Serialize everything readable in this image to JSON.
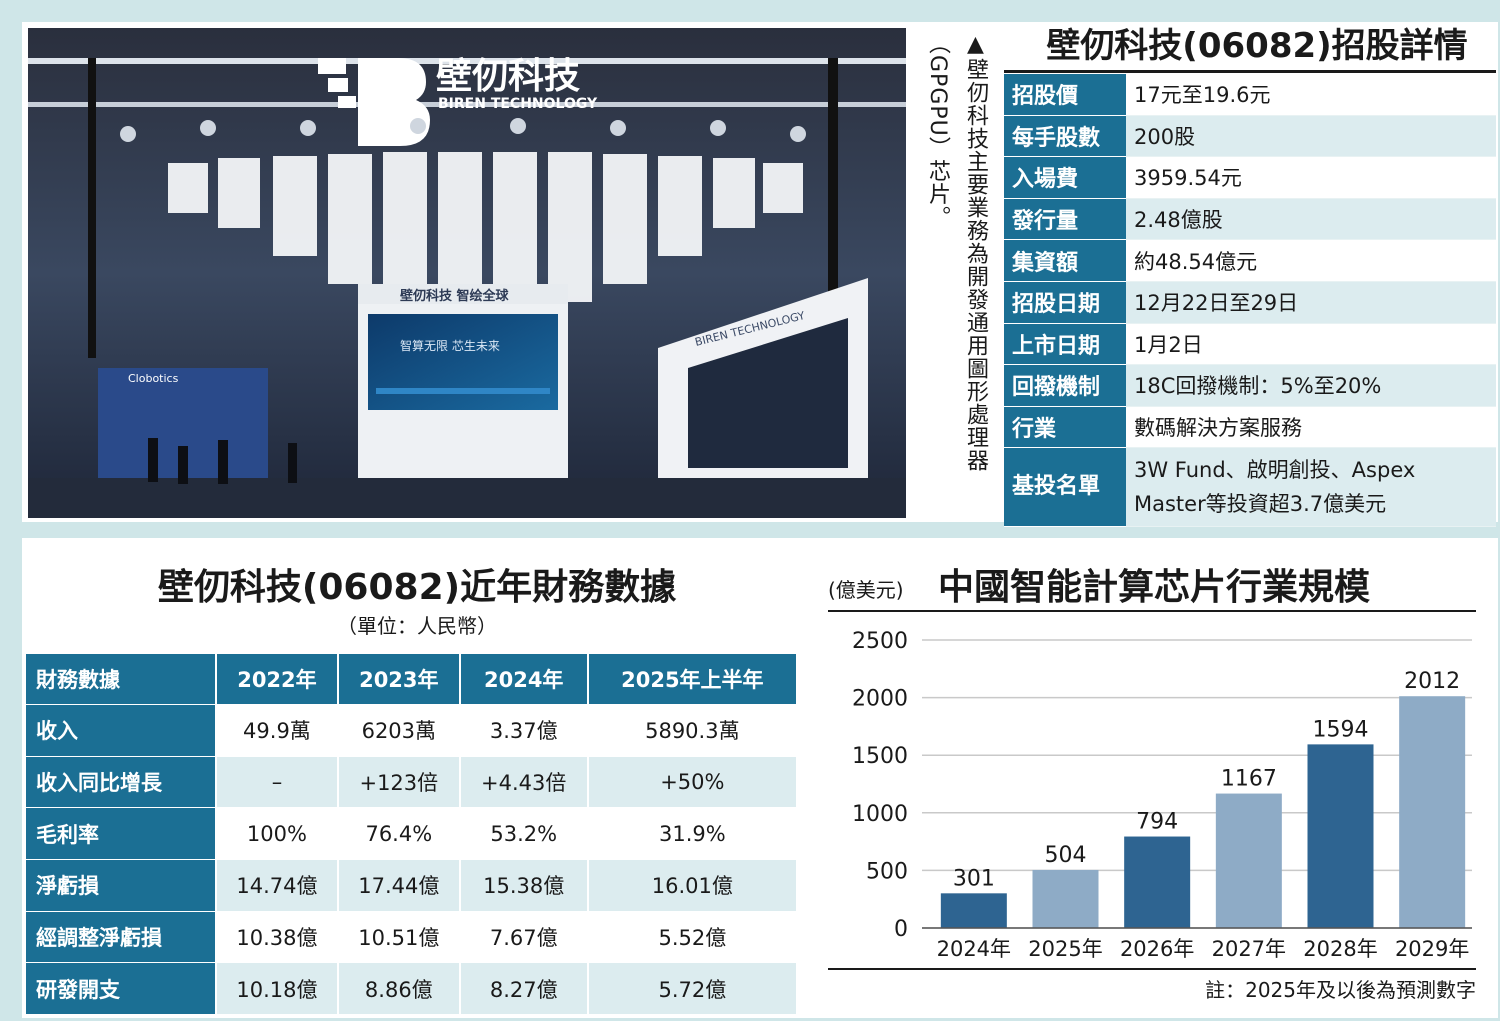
{
  "photo": {
    "logo_cn": "壁仞科技",
    "logo_en": "BIREN TECHNOLOGY",
    "booth_banner": "壁仞科技 智绘全球",
    "screen_text": "智算无限 芯生未来",
    "side_sign": "BIREN TECHNOLOGY",
    "left_booth": "Clobotics"
  },
  "caption": {
    "line1": "▲壁仞科技主要業務為開發通用圖形處理器",
    "line2": "（GPGPU）芯片。"
  },
  "ipo": {
    "title": "壁仞科技(06082)招股詳情",
    "rows": [
      {
        "key": "招股價",
        "value": "17元至19.6元"
      },
      {
        "key": "每手股數",
        "value": "200股"
      },
      {
        "key": "入場費",
        "value": "3959.54元"
      },
      {
        "key": "發行量",
        "value": "2.48億股"
      },
      {
        "key": "集資額",
        "value": "約48.54億元"
      },
      {
        "key": "招股日期",
        "value": "12月22日至29日"
      },
      {
        "key": "上市日期",
        "value": "1月2日"
      },
      {
        "key": "回撥機制",
        "value": "18C回撥機制：5%至20%"
      },
      {
        "key": "行業",
        "value": "數碼解決方案服務"
      },
      {
        "key": "基投名單",
        "value": "3W Fund、啟明創投、Aspex Master等投資超3.7億美元"
      }
    ]
  },
  "financial": {
    "title": "壁仞科技(06082)近年財務數據",
    "unit": "（單位：人民幣）",
    "headers": [
      "財務數據",
      "2022年",
      "2023年",
      "2024年",
      "2025年上半年"
    ],
    "rows": [
      {
        "label": "收入",
        "values": [
          "49.9萬",
          "6203萬",
          "3.37億",
          "5890.3萬"
        ]
      },
      {
        "label": "收入同比增長",
        "values": [
          "–",
          "+123倍",
          "+4.43倍",
          "+50%"
        ]
      },
      {
        "label": "毛利率",
        "values": [
          "100%",
          "76.4%",
          "53.2%",
          "31.9%"
        ]
      },
      {
        "label": "淨虧損",
        "values": [
          "14.74億",
          "17.44億",
          "15.38億",
          "16.01億"
        ]
      },
      {
        "label": "經調整淨虧損",
        "values": [
          "10.38億",
          "10.51億",
          "7.67億",
          "5.52億"
        ]
      },
      {
        "label": "研發開支",
        "values": [
          "10.18億",
          "8.86億",
          "8.27億",
          "5.72億"
        ]
      }
    ]
  },
  "chart_data": {
    "type": "bar",
    "title": "中國智能計算芯片行業規模",
    "ylabel": "(億美元)",
    "xlabel": "",
    "categories": [
      "2024年",
      "2025年",
      "2026年",
      "2027年",
      "2028年",
      "2029年"
    ],
    "values": [
      301,
      504,
      794,
      1167,
      1594,
      2012
    ],
    "ylim": [
      0,
      2500
    ],
    "yticks": [
      0,
      500,
      1000,
      1500,
      2000,
      2500
    ],
    "grid": true,
    "legend": "none",
    "note": "註：2025年及以後為預測數字",
    "colors": {
      "dark": "#2e6491",
      "light": "#8eabc6"
    }
  }
}
